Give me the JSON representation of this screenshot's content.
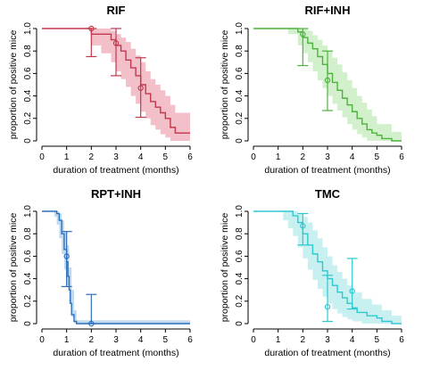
{
  "chart_data": [
    {
      "type": "line",
      "title": "RIF",
      "xlabel": "duration of treatment (months)",
      "ylabel": "proportion of positive mice",
      "xlim": [
        0,
        6
      ],
      "ylim": [
        0,
        1
      ],
      "xticks": [
        "0",
        "1",
        "2",
        "3",
        "4",
        "5",
        "6"
      ],
      "yticks": [
        "0",
        "0.2",
        "0.4",
        "0.6",
        "0.8",
        "1.0"
      ],
      "color": "#c0394b",
      "band_color": "#f2b8c3",
      "grid": false,
      "series": [
        {
          "kind": "step",
          "x": [
            0,
            2.0,
            2.8,
            3.0,
            3.2,
            3.4,
            3.6,
            3.8,
            4.0,
            4.2,
            4.4,
            4.6,
            4.8,
            5.0,
            5.2,
            5.4,
            6.0
          ],
          "y": [
            1.0,
            0.95,
            0.9,
            0.85,
            0.8,
            0.72,
            0.65,
            0.58,
            0.5,
            0.42,
            0.35,
            0.3,
            0.25,
            0.2,
            0.12,
            0.07,
            0.07
          ]
        },
        {
          "kind": "band",
          "x": [
            0,
            2.0,
            2.4,
            2.8,
            3.0,
            3.2,
            3.4,
            3.6,
            3.8,
            4.0,
            4.2,
            4.4,
            4.6,
            4.8,
            5.0,
            5.2,
            5.4,
            6.0
          ],
          "upper": [
            1.0,
            1.0,
            1.0,
            0.98,
            0.95,
            0.92,
            0.88,
            0.82,
            0.76,
            0.7,
            0.62,
            0.55,
            0.5,
            0.45,
            0.4,
            0.32,
            0.25,
            0.25
          ],
          "lower": [
            1.0,
            0.85,
            0.78,
            0.7,
            0.62,
            0.55,
            0.48,
            0.4,
            0.33,
            0.26,
            0.2,
            0.14,
            0.1,
            0.06,
            0.03,
            0.0,
            0.0,
            0.0
          ]
        }
      ],
      "observed": [
        {
          "x": 2,
          "y": 1.0,
          "lo": 0.75,
          "hi": 1.0
        },
        {
          "x": 3,
          "y": 0.87,
          "lo": 0.58,
          "hi": 1.0
        },
        {
          "x": 4,
          "y": 0.47,
          "lo": 0.21,
          "hi": 0.74
        }
      ]
    },
    {
      "type": "line",
      "title": "RIF+INH",
      "xlabel": "duration of treatment (months)",
      "ylabel": "proportion of positive mice",
      "xlim": [
        0,
        6
      ],
      "ylim": [
        0,
        1
      ],
      "xticks": [
        "0",
        "1",
        "2",
        "3",
        "4",
        "5",
        "6"
      ],
      "yticks": [
        "0",
        "0.2",
        "0.4",
        "0.6",
        "0.8",
        "1.0"
      ],
      "color": "#4db33d",
      "band_color": "#cdeec6",
      "grid": false,
      "series": [
        {
          "kind": "step",
          "x": [
            0,
            1.8,
            2.0,
            2.2,
            2.4,
            2.6,
            2.8,
            3.0,
            3.2,
            3.4,
            3.6,
            3.8,
            4.0,
            4.2,
            4.4,
            4.6,
            4.8,
            5.0,
            5.2,
            5.6,
            6.0
          ],
          "y": [
            1.0,
            0.97,
            0.92,
            0.87,
            0.82,
            0.75,
            0.68,
            0.6,
            0.52,
            0.45,
            0.38,
            0.32,
            0.26,
            0.2,
            0.15,
            0.1,
            0.07,
            0.05,
            0.02,
            0.0,
            0.0
          ]
        },
        {
          "kind": "band",
          "x": [
            0,
            1.4,
            1.8,
            2.0,
            2.2,
            2.4,
            2.6,
            2.8,
            3.0,
            3.2,
            3.4,
            3.6,
            3.8,
            4.0,
            4.2,
            4.4,
            4.6,
            4.8,
            5.0,
            5.6,
            6.0
          ],
          "upper": [
            1.0,
            1.0,
            1.0,
            1.0,
            0.98,
            0.94,
            0.9,
            0.85,
            0.8,
            0.74,
            0.68,
            0.61,
            0.54,
            0.47,
            0.4,
            0.34,
            0.28,
            0.22,
            0.15,
            0.08,
            0.08
          ],
          "lower": [
            1.0,
            0.95,
            0.85,
            0.78,
            0.7,
            0.62,
            0.54,
            0.47,
            0.4,
            0.33,
            0.27,
            0.21,
            0.15,
            0.1,
            0.06,
            0.03,
            0.0,
            0.0,
            0.0,
            0.0,
            0.0
          ]
        }
      ],
      "observed": [
        {
          "x": 2,
          "y": 0.95,
          "lo": 0.67,
          "hi": 1.0
        },
        {
          "x": 3,
          "y": 0.54,
          "lo": 0.27,
          "hi": 0.8
        }
      ]
    },
    {
      "type": "line",
      "title": "RPT+INH",
      "xlabel": "duration of treatment (months)",
      "ylabel": "proportion of positive mice",
      "xlim": [
        0,
        6
      ],
      "ylim": [
        0,
        1
      ],
      "xticks": [
        "0",
        "1",
        "2",
        "3",
        "4",
        "5",
        "6"
      ],
      "yticks": [
        "0",
        "0.2",
        "0.4",
        "0.6",
        "0.8",
        "1.0"
      ],
      "color": "#2f6fb8",
      "band_color": "#b9d7f0",
      "grid": false,
      "series": [
        {
          "kind": "step",
          "x": [
            0,
            0.6,
            0.7,
            0.8,
            0.9,
            1.0,
            1.05,
            1.1,
            1.15,
            1.2,
            1.3,
            1.4,
            6.0
          ],
          "y": [
            1.0,
            0.98,
            0.92,
            0.8,
            0.66,
            0.55,
            0.42,
            0.3,
            0.18,
            0.08,
            0.02,
            0.0,
            0.0
          ]
        },
        {
          "kind": "band",
          "x": [
            0,
            0.5,
            0.6,
            0.7,
            0.8,
            0.9,
            1.0,
            1.1,
            1.2,
            1.3,
            1.4,
            6.0
          ],
          "upper": [
            1.0,
            1.0,
            1.0,
            0.98,
            0.92,
            0.82,
            0.7,
            0.5,
            0.3,
            0.12,
            0.03,
            0.03
          ],
          "lower": [
            1.0,
            0.95,
            0.88,
            0.76,
            0.62,
            0.48,
            0.34,
            0.18,
            0.06,
            0.0,
            0.0,
            0.0
          ]
        }
      ],
      "observed": [
        {
          "x": 1,
          "y": 0.6,
          "lo": 0.33,
          "hi": 0.82
        },
        {
          "x": 2,
          "y": 0.0,
          "lo": 0.0,
          "hi": 0.26
        }
      ]
    },
    {
      "type": "line",
      "title": "TMC",
      "xlabel": "duration of treatment (months)",
      "ylabel": "proportion of positive mice",
      "xlim": [
        0,
        6
      ],
      "ylim": [
        0,
        1
      ],
      "xticks": [
        "0",
        "1",
        "2",
        "3",
        "4",
        "5",
        "6"
      ],
      "yticks": [
        "0",
        "0.2",
        "0.4",
        "0.6",
        "0.8",
        "1.0"
      ],
      "color": "#2ec8cf",
      "band_color": "#c3eef0",
      "grid": false,
      "series": [
        {
          "kind": "step",
          "x": [
            0,
            1.6,
            1.8,
            2.0,
            2.2,
            2.4,
            2.6,
            2.8,
            3.0,
            3.2,
            3.4,
            3.6,
            3.8,
            4.0,
            4.2,
            4.6,
            5.0,
            5.2,
            5.6,
            6.0
          ],
          "y": [
            1.0,
            0.96,
            0.9,
            0.8,
            0.7,
            0.62,
            0.55,
            0.47,
            0.4,
            0.34,
            0.28,
            0.23,
            0.18,
            0.14,
            0.1,
            0.07,
            0.05,
            0.02,
            0.0,
            0.0
          ]
        },
        {
          "kind": "band",
          "x": [
            0,
            1.2,
            1.4,
            1.6,
            1.8,
            2.0,
            2.2,
            2.4,
            2.6,
            2.8,
            3.0,
            3.2,
            3.4,
            3.6,
            3.8,
            4.0,
            4.4,
            4.8,
            5.2,
            5.6,
            6.0
          ],
          "upper": [
            1.0,
            1.0,
            1.0,
            1.0,
            0.98,
            0.95,
            0.9,
            0.83,
            0.76,
            0.68,
            0.6,
            0.52,
            0.46,
            0.4,
            0.34,
            0.28,
            0.22,
            0.17,
            0.12,
            0.07,
            0.07
          ],
          "lower": [
            1.0,
            0.92,
            0.85,
            0.78,
            0.68,
            0.58,
            0.48,
            0.39,
            0.31,
            0.24,
            0.18,
            0.13,
            0.09,
            0.06,
            0.04,
            0.02,
            0.0,
            0.0,
            0.0,
            0.0,
            0.0
          ]
        }
      ],
      "observed": [
        {
          "x": 2,
          "y": 0.87,
          "lo": 0.7,
          "hi": 0.98
        },
        {
          "x": 3,
          "y": 0.15,
          "lo": 0.02,
          "hi": 0.43
        },
        {
          "x": 4,
          "y": 0.29,
          "lo": 0.13,
          "hi": 0.58
        }
      ]
    }
  ]
}
